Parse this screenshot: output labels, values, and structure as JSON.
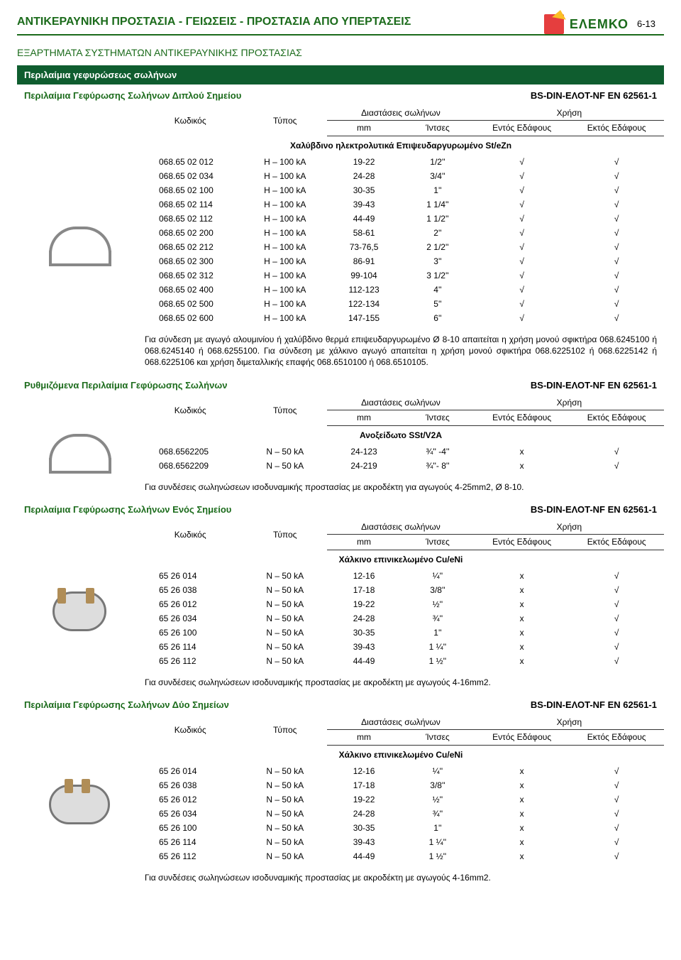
{
  "page_number": "6-13",
  "brand": "ΕΛΕΜΚΟ",
  "h1": "ΑΝΤΙΚΕΡΑΥΝΙΚΗ ΠΡΟΣΤΑΣΙΑ - ΓΕΙΩΣΕΙΣ - ΠΡΟΣΤΑΣΙΑ ΑΠΟ ΥΠΕΡΤΑΣΕΙΣ",
  "h2": "ΕΞΑΡΤΗΜΑΤΑ ΣΥΣΤΗΜΑΤΩΝ ΑΝΤΙΚΕΡΑΥΝΙΚΗΣ ΠΡΟΣΤΑΣΙΑΣ",
  "green_bar": "Περιλαίμια γεφυρώσεως σωλήνων",
  "std_label": "BS-DIN-ΕΛΟΤ-NF EN 62561-1",
  "header_cols": {
    "code": "Κωδικός",
    "type": "Τύπος",
    "dims": "Διαστάσεις σωλήνων",
    "usage": "Χρήση",
    "mm": "mm",
    "inches": "Ίντσες",
    "inside": "Εντός Εδάφους",
    "outside": "Εκτός Εδάφους"
  },
  "sections": [
    {
      "title": "Περιλαίμια Γεφύρωσης Σωλήνων Διπλού Σημείου",
      "material": "Χαλύβδινο ηλεκτρολυτικά Επιψευδαργυρωμένο St/eZn",
      "thumb": "clamp1",
      "rows": [
        {
          "c": "068.65 02 012",
          "t": "H – 100 kA",
          "mm": "19-22",
          "in": "1/2''",
          "a": "√",
          "b": "√"
        },
        {
          "c": "068.65 02 034",
          "t": "H – 100 kA",
          "mm": "24-28",
          "in": "3/4''",
          "a": "√",
          "b": "√"
        },
        {
          "c": "068.65 02 100",
          "t": "H – 100 kA",
          "mm": "30-35",
          "in": "1''",
          "a": "√",
          "b": "√"
        },
        {
          "c": "068.65 02 114",
          "t": "H – 100 kA",
          "mm": "39-43",
          "in": "1 1/4''",
          "a": "√",
          "b": "√"
        },
        {
          "c": "068.65 02 112",
          "t": "H – 100 kA",
          "mm": "44-49",
          "in": "1 1/2''",
          "a": "√",
          "b": "√"
        },
        {
          "c": "068.65 02 200",
          "t": "H – 100 kA",
          "mm": "58-61",
          "in": "2''",
          "a": "√",
          "b": "√"
        },
        {
          "c": "068.65 02 212",
          "t": "H – 100 kA",
          "mm": "73-76,5",
          "in": "2 1/2''",
          "a": "√",
          "b": "√"
        },
        {
          "c": "068.65 02 300",
          "t": "H – 100 kA",
          "mm": "86-91",
          "in": "3''",
          "a": "√",
          "b": "√"
        },
        {
          "c": "068.65 02 312",
          "t": "H – 100 kA",
          "mm": "99-104",
          "in": "3 1/2''",
          "a": "√",
          "b": "√"
        },
        {
          "c": "068.65 02 400",
          "t": "H – 100 kA",
          "mm": "112-123",
          "in": "4''",
          "a": "√",
          "b": "√"
        },
        {
          "c": "068.65 02 500",
          "t": "H – 100 kA",
          "mm": "122-134",
          "in": "5''",
          "a": "√",
          "b": "√"
        },
        {
          "c": "068.65 02 600",
          "t": "H – 100 kA",
          "mm": "147-155",
          "in": "6''",
          "a": "√",
          "b": "√"
        }
      ],
      "note": "Για σύνδεση με αγωγό αλουμινίου ή χαλύβδινο θερμά επιψευδαργυρωμένο Ø 8-10 απαιτείται η χρήση μονού σφικτήρα 068.6245100 ή 068.6245140 ή 068.6255100. Για σύνδεση με χάλκινο αγωγό απαιτείται η χρήση μονού σφικτήρα 068.6225102 ή 068.6225142 ή 068.6225106 και χρήση διμεταλλικής επαφής 068.6510100 ή 068.6510105."
    },
    {
      "title": "Ρυθμιζόμενα Περιλαίμια Γεφύρωσης Σωλήνων",
      "material": "Ανοξείδωτο SSt/V2A",
      "thumb": "clamp2",
      "rows": [
        {
          "c": "068.6562205",
          "t": "N – 50 kA",
          "mm": "24-123",
          "in": "¾'' -4''",
          "a": "x",
          "b": "√"
        },
        {
          "c": "068.6562209",
          "t": "N – 50 kA",
          "mm": "24-219",
          "in": "¾''- 8''",
          "a": "x",
          "b": "√"
        }
      ],
      "note": "Για συνδέσεις σωληνώσεων ισοδυναμικής προστασίας με ακροδέκτη για αγωγούς 4-25mm2, Ø 8-10."
    },
    {
      "title": "Περιλαίμια Γεφύρωσης Σωλήνων Ενός Σημείου",
      "material": "Χάλκινο επινικελωμένο Cu/eNi",
      "thumb": "clamp3",
      "rows": [
        {
          "c": "65 26 014",
          "t": "N – 50 kA",
          "mm": "12-16",
          "in": "¼''",
          "a": "x",
          "b": "√"
        },
        {
          "c": "65 26 038",
          "t": "N – 50 kA",
          "mm": "17-18",
          "in": "3/8''",
          "a": "x",
          "b": "√"
        },
        {
          "c": "65 26 012",
          "t": "N – 50 kA",
          "mm": "19-22",
          "in": "½''",
          "a": "x",
          "b": "√"
        },
        {
          "c": "65 26 034",
          "t": "N – 50 kA",
          "mm": "24-28",
          "in": "¾''",
          "a": "x",
          "b": "√"
        },
        {
          "c": "65 26 100",
          "t": "N – 50 kA",
          "mm": "30-35",
          "in": "1''",
          "a": "x",
          "b": "√"
        },
        {
          "c": "65 26 114",
          "t": "N – 50 kA",
          "mm": "39-43",
          "in": "1 ¼''",
          "a": "x",
          "b": "√"
        },
        {
          "c": "65 26 112",
          "t": "N – 50 kA",
          "mm": "44-49",
          "in": "1 ½''",
          "a": "x",
          "b": "√"
        }
      ],
      "note": "Για συνδέσεις σωληνώσεων ισοδυναμικής προστασίας με ακροδέκτη με αγωγούς 4-16mm2."
    },
    {
      "title": "Περιλαίμια Γεφύρωσης Σωλήνων Δύο Σημείων",
      "material": "Χάλκινο επινικελωμένο Cu/eNi",
      "thumb": "clamp4",
      "rows": [
        {
          "c": "65 26 014",
          "t": "N – 50 kA",
          "mm": "12-16",
          "in": "¼''",
          "a": "x",
          "b": "√"
        },
        {
          "c": "65 26 038",
          "t": "N – 50 kA",
          "mm": "17-18",
          "in": "3/8''",
          "a": "x",
          "b": "√"
        },
        {
          "c": "65 26 012",
          "t": "N – 50 kA",
          "mm": "19-22",
          "in": "½''",
          "a": "x",
          "b": "√"
        },
        {
          "c": "65 26 034",
          "t": "N – 50 kA",
          "mm": "24-28",
          "in": "¾''",
          "a": "x",
          "b": "√"
        },
        {
          "c": "65 26 100",
          "t": "N – 50 kA",
          "mm": "30-35",
          "in": "1''",
          "a": "x",
          "b": "√"
        },
        {
          "c": "65 26 114",
          "t": "N – 50 kA",
          "mm": "39-43",
          "in": "1 ¼''",
          "a": "x",
          "b": "√"
        },
        {
          "c": "65 26 112",
          "t": "N – 50 kA",
          "mm": "44-49",
          "in": "1 ½''",
          "a": "x",
          "b": "√"
        }
      ],
      "note": "Για συνδέσεις σωληνώσεων ισοδυναμικής προστασίας με ακροδέκτη με αγωγούς 4-16mm2."
    }
  ]
}
